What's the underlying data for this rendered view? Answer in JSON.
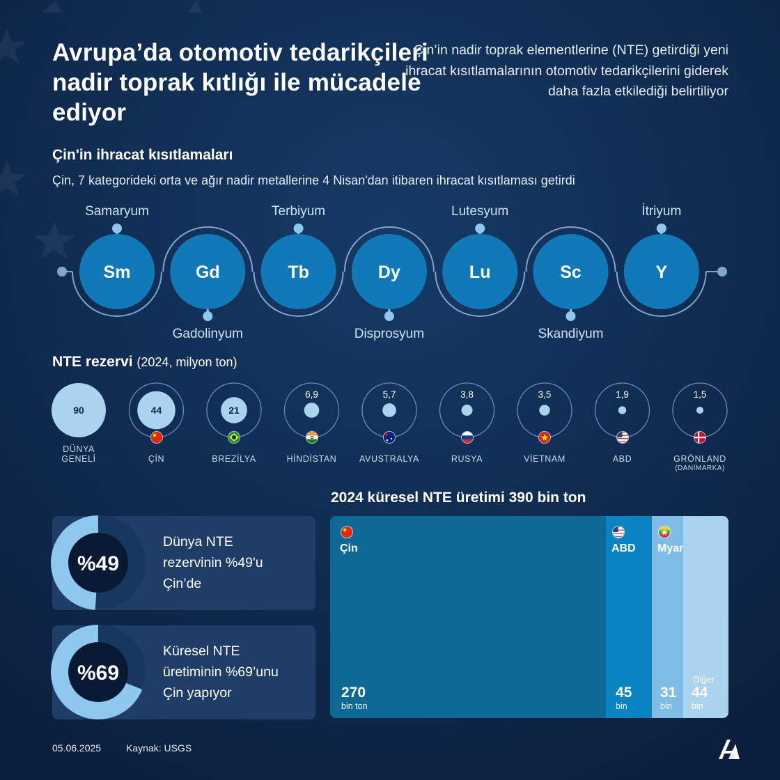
{
  "header": {
    "title": "Avrupa’da otomotiv tedarikçileri nadir toprak kıtlığı ile mücadele ediyor",
    "subtitle": "Çin’in nadir toprak elementlerine (NTE) getirdiği yeni ihracat kısıtlamalarının otomotiv tedarikçilerini giderek daha fazla etkilediği belirtiliyor"
  },
  "restrictions": {
    "heading": "Çin'in ihracat kısıtlamaları",
    "subheading": "Çin, 7 kategorideki orta ve ağır nadir metallerine 4 Nisan'dan itibaren ihracat kısıtlaması getirdi",
    "elements": [
      {
        "symbol": "Sm",
        "name": "Samaryum",
        "label_pos": "top"
      },
      {
        "symbol": "Gd",
        "name": "Gadolinyum",
        "label_pos": "bottom"
      },
      {
        "symbol": "Tb",
        "name": "Terbiyum",
        "label_pos": "top"
      },
      {
        "symbol": "Dy",
        "name": "Disprosyum",
        "label_pos": "bottom"
      },
      {
        "symbol": "Lu",
        "name": "Lutesyum",
        "label_pos": "top"
      },
      {
        "symbol": "Sc",
        "name": "Skandiyum",
        "label_pos": "bottom"
      },
      {
        "symbol": "Y",
        "name": "İtriyum",
        "label_pos": "top"
      }
    ]
  },
  "reserves": {
    "heading": "NTE rezervi",
    "unit": "(2024, milyon ton)",
    "items": [
      {
        "label": "DÜNYA GENELİ",
        "value": 90,
        "display": "90",
        "flag": ""
      },
      {
        "label": "ÇİN",
        "value": 44,
        "display": "44",
        "flag": "china"
      },
      {
        "label": "BREZİLYA",
        "value": 21,
        "display": "21",
        "flag": "brazil"
      },
      {
        "label": "HİNDİSTAN",
        "value": 6.9,
        "display": "6,9",
        "flag": "india"
      },
      {
        "label": "AVUSTRALYA",
        "value": 5.7,
        "display": "5,7",
        "flag": "australia"
      },
      {
        "label": "RUSYA",
        "value": 3.8,
        "display": "3,8",
        "flag": "russia"
      },
      {
        "label": "VİETNAM",
        "value": 3.5,
        "display": "3,5",
        "flag": "vietnam"
      },
      {
        "label": "ABD",
        "value": 1.9,
        "display": "1,9",
        "flag": "usa"
      },
      {
        "label": "GRÖNLAND",
        "note": "(DANİMARKA)",
        "value": 1.5,
        "display": "1,5",
        "flag": "denmark"
      }
    ]
  },
  "stats": [
    {
      "percent": 49,
      "label": "%49",
      "text_lines": [
        "Dünya NTE",
        "rezervinin %49'u",
        "Çin’de"
      ]
    },
    {
      "percent": 69,
      "label": "%69",
      "text_lines": [
        "Küresel NTE",
        "üretiminin %69’unu",
        "Çin yapıyor"
      ]
    }
  ],
  "chart_data": {
    "type": "bar",
    "title": "2024 küresel NTE üretimi 390 bin ton",
    "total": 390,
    "segments": [
      {
        "name": "Çin",
        "value": 270,
        "value_label": "270",
        "unit": "bin ton",
        "color": "#0e6896",
        "flag": "china"
      },
      {
        "name": "ABD",
        "value": 45,
        "value_label": "45",
        "unit": "bin",
        "color": "#0a83c2",
        "flag": "usa"
      },
      {
        "name": "Myanmar",
        "value": 31,
        "value_label": "31",
        "unit": "bin",
        "color": "#7fbde6",
        "flag": "myanmar"
      },
      {
        "name": "Diğer",
        "value": 44,
        "value_label": "44",
        "unit": "bin",
        "color": "#a9d3ef",
        "flag": ""
      }
    ]
  },
  "footer": {
    "date": "05.06.2025",
    "source": "Kaynak: USGS",
    "logo_text": "AA"
  },
  "colors": {
    "background": "#0d2547",
    "accent": "#1279b8",
    "light": "#8ec8ee",
    "track": "#7fa6cf"
  }
}
